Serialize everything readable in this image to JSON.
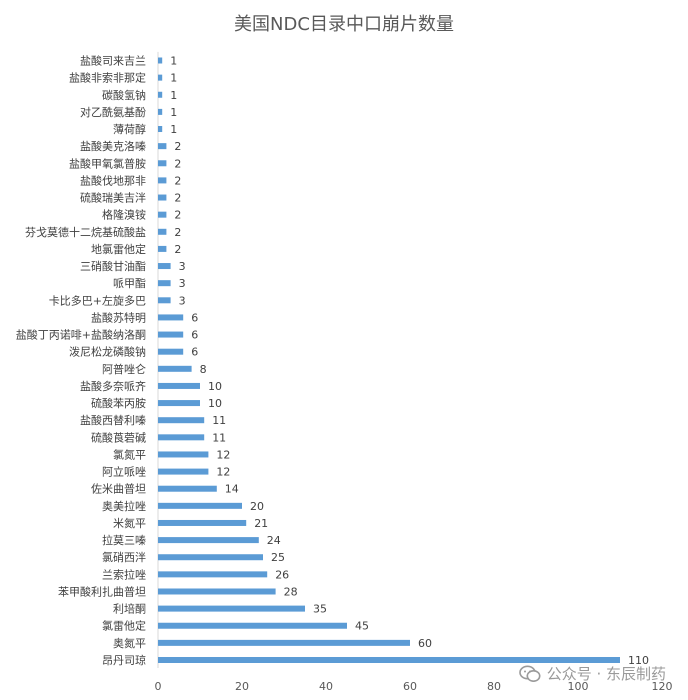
{
  "chart_data": {
    "type": "bar",
    "orientation": "horizontal",
    "title": "美国NDC目录中口崩片数量",
    "xlabel": "",
    "ylabel": "",
    "xlim": [
      0,
      120
    ],
    "x_ticks": [
      0,
      20,
      40,
      60,
      80,
      100,
      120
    ],
    "grid": false,
    "legend": "none",
    "bar_color": "#5b9bd5",
    "categories": [
      "盐酸司来吉兰",
      "盐酸非索非那定",
      "碳酸氢钠",
      "对乙酰氨基酚",
      "薄荷醇",
      "盐酸美克洛嗪",
      "盐酸甲氧氯普胺",
      "盐酸伐地那非",
      "硫酸瑞美吉泮",
      "格隆溴铵",
      "芬戈莫德十二烷基硫酸盐",
      "地氯雷他定",
      "三硝酸甘油酯",
      "哌甲酯",
      "卡比多巴+左旋多巴",
      "盐酸苏特明",
      "盐酸丁丙诺啡+盐酸纳洛酮",
      "泼尼松龙磷酸钠",
      "阿普唑仑",
      "盐酸多奈哌齐",
      "硫酸苯丙胺",
      "盐酸西替利嗪",
      "硫酸莨菪碱",
      "氯氮平",
      "阿立哌唑",
      "佐米曲普坦",
      "奥美拉唑",
      "米氮平",
      "拉莫三嗪",
      "氯硝西泮",
      "兰索拉唑",
      "苯甲酸利扎曲普坦",
      "利培酮",
      "氯雷他定",
      "奥氮平",
      "昂丹司琼"
    ],
    "values": [
      1,
      1,
      1,
      1,
      1,
      2,
      2,
      2,
      2,
      2,
      2,
      2,
      3,
      3,
      3,
      6,
      6,
      6,
      8,
      10,
      10,
      11,
      11,
      12,
      12,
      14,
      20,
      21,
      24,
      25,
      26,
      28,
      35,
      45,
      60,
      110
    ]
  },
  "watermark": {
    "icon": "wechat-icon",
    "text": "公众号 · 东辰制药"
  }
}
